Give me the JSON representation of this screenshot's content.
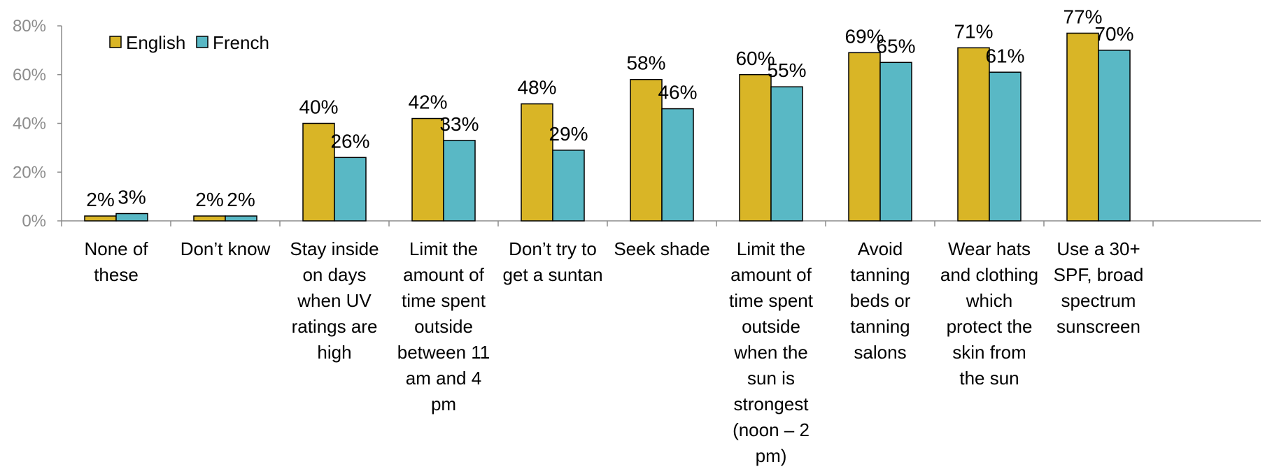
{
  "chart_data": {
    "type": "bar",
    "title": "",
    "xlabel": "",
    "ylabel": "",
    "ylim": [
      0,
      80
    ],
    "yticks": [
      "0%",
      "20%",
      "40%",
      "60%",
      "80%"
    ],
    "grid": false,
    "legend": "top-left",
    "categories": [
      "None of these",
      "Don’t know",
      "Stay inside on days when UV ratings are high",
      "Limit the amount of time spent outside between 11 am and 4 pm",
      "Don’t try to get a suntan",
      "Seek shade",
      "Limit the amount of time spent outside when the sun is strongest (noon – 2 pm)",
      "Avoid tanning beds or tanning salons",
      "Wear hats and clothing which protect the skin from the sun",
      "Use a 30+ SPF, broad spectrum sunscreen"
    ],
    "series": [
      {
        "name": "English",
        "color": "#d9b526",
        "values": [
          2,
          2,
          40,
          42,
          48,
          58,
          60,
          69,
          71,
          77
        ],
        "labels": [
          "2%",
          "2%",
          "40%",
          "42%",
          "48%",
          "58%",
          "60%",
          "69%",
          "71%",
          "77%"
        ]
      },
      {
        "name": "French",
        "color": "#59b8c5",
        "values": [
          3,
          2,
          26,
          33,
          29,
          46,
          55,
          65,
          61,
          70
        ],
        "labels": [
          "3%",
          "2%",
          "26%",
          "33%",
          "29%",
          "46%",
          "55%",
          "65%",
          "61%",
          "70%"
        ]
      }
    ]
  }
}
